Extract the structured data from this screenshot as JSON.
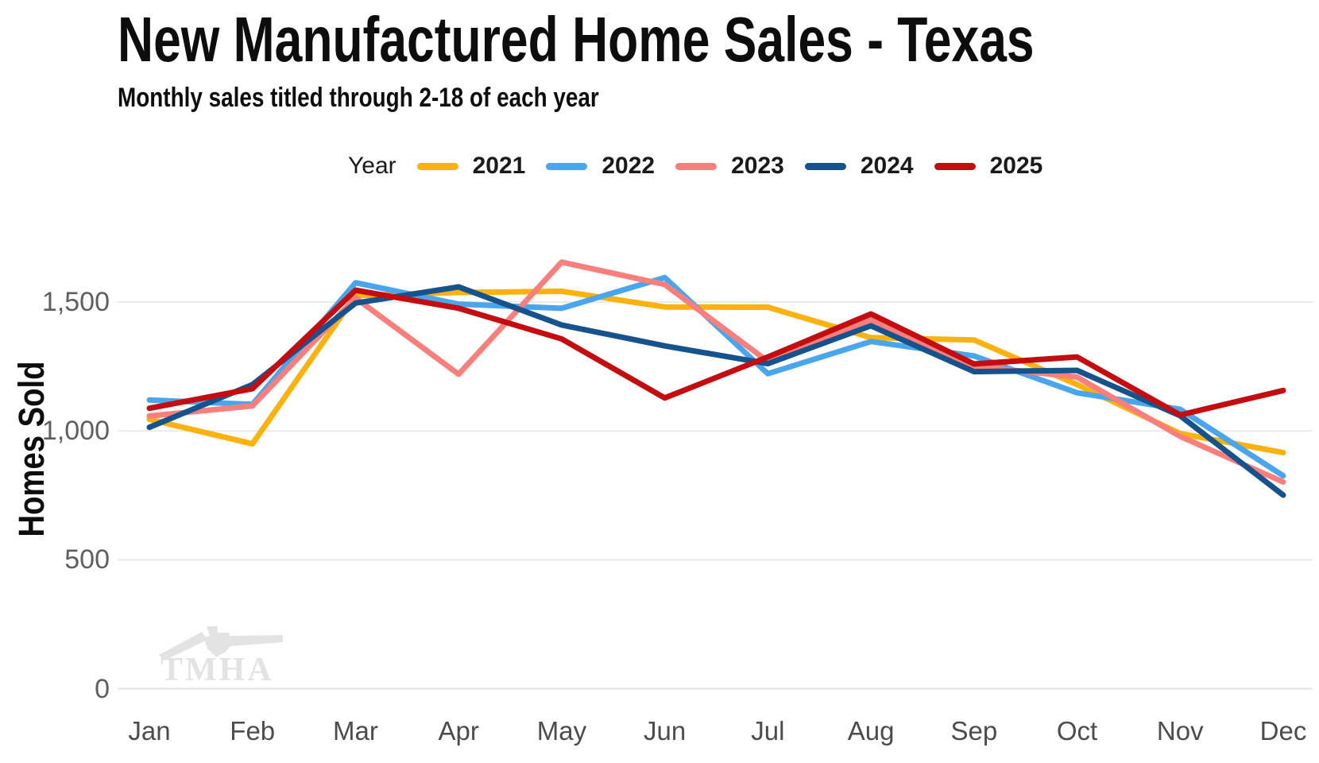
{
  "header": {
    "title": "New Manufactured Home Sales - Texas",
    "subtitle": "Monthly sales titled through 2-18 of each year"
  },
  "watermark": {
    "text": "TMHA"
  },
  "chart_data": {
    "type": "line",
    "title": "New Manufactured Home Sales - Texas",
    "subtitle": "Monthly sales titled through 2-18 of each year",
    "legend_title": "Year",
    "legend_position": "top",
    "grid": "horizontal",
    "xlabel": "",
    "ylabel": "Homes Sold",
    "ylim": [
      0,
      1810
    ],
    "categories": [
      "Jan",
      "Feb",
      "Mar",
      "Apr",
      "May",
      "Jun",
      "Jul",
      "Aug",
      "Sep",
      "Oct",
      "Nov",
      "Dec"
    ],
    "y_ticks": [
      {
        "value": 0,
        "label": "0"
      },
      {
        "value": 500,
        "label": "500"
      },
      {
        "value": 1000,
        "label": "1,000"
      },
      {
        "value": 1500,
        "label": "1,500"
      }
    ],
    "series": [
      {
        "name": "2021",
        "color": "#F9B20E",
        "values": [
          1045,
          950,
          1525,
          1537,
          1542,
          1481,
          1480,
          1362,
          1353,
          1180,
          990,
          916
        ]
      },
      {
        "name": "2022",
        "color": "#4AA6EC",
        "values": [
          1120,
          1103,
          1575,
          1492,
          1476,
          1595,
          1222,
          1347,
          1291,
          1148,
          1084,
          826
        ]
      },
      {
        "name": "2023",
        "color": "#F97F7D",
        "values": [
          1058,
          1097,
          1516,
          1220,
          1655,
          1568,
          1270,
          1431,
          1252,
          1209,
          979,
          802
        ]
      },
      {
        "name": "2024",
        "color": "#16538C",
        "values": [
          1014,
          1180,
          1496,
          1559,
          1411,
          1330,
          1261,
          1408,
          1230,
          1235,
          1059,
          751
        ]
      },
      {
        "name": "2025",
        "color": "#C40D10",
        "values": [
          1088,
          1164,
          1546,
          1476,
          1357,
          1128,
          1287,
          1454,
          1260,
          1287,
          1062,
          1157
        ]
      }
    ]
  }
}
